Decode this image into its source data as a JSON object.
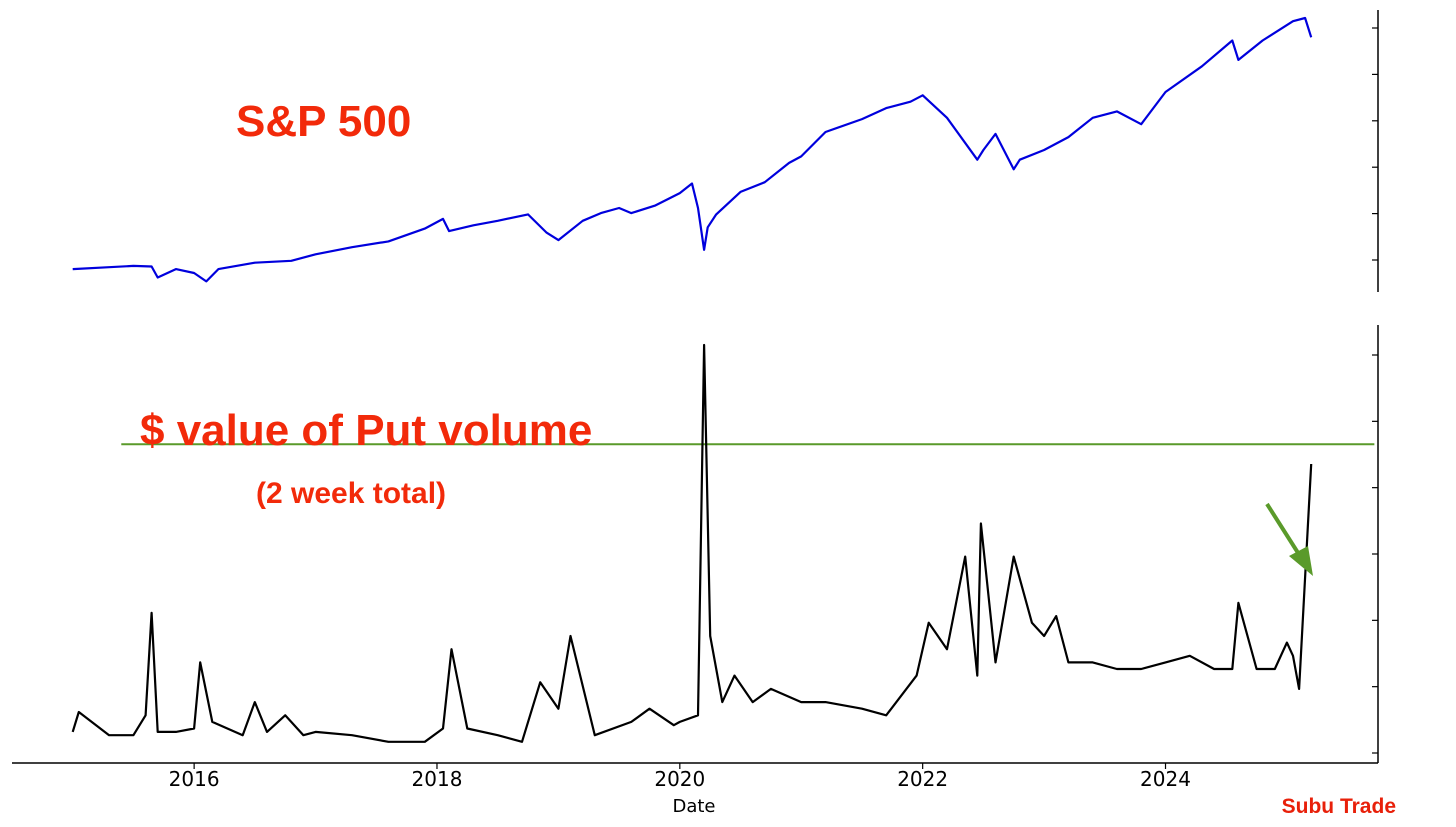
{
  "colors": {
    "sp500_line": "#0000dd",
    "put_line": "#000000",
    "threshold": "#5a9a2a",
    "annotation_text": "#f22a0a",
    "brand": "#e8200a"
  },
  "chart_data": [
    {
      "type": "line",
      "title": "S&P 500",
      "y_tick_labels_visible": false,
      "y_ticks_count": 6,
      "grid": false,
      "series": [
        {
          "x": [
            2015.0,
            2015.3,
            2015.5,
            2015.65,
            2015.7,
            2015.85,
            2016.0,
            2016.1,
            2016.2,
            2016.5,
            2016.8,
            2017.0,
            2017.3,
            2017.6,
            2017.9,
            2018.05,
            2018.1,
            2018.3,
            2018.5,
            2018.75,
            2018.9,
            2019.0,
            2019.2,
            2019.35,
            2019.5,
            2019.6,
            2019.8,
            2020.0,
            2020.1,
            2020.15,
            2020.2,
            2020.23,
            2020.3,
            2020.5,
            2020.7,
            2020.9,
            2021.0,
            2021.2,
            2021.5,
            2021.7,
            2021.9,
            2022.0,
            2022.2,
            2022.45,
            2022.5,
            2022.6,
            2022.75,
            2022.8,
            2023.0,
            2023.2,
            2023.4,
            2023.6,
            2023.8,
            2024.0,
            2024.3,
            2024.55,
            2024.6,
            2024.8,
            2025.05,
            2025.15,
            2025.2
          ],
          "y": [
            2050,
            2080,
            2100,
            2090,
            1920,
            2050,
            1990,
            1860,
            2050,
            2150,
            2180,
            2280,
            2390,
            2480,
            2680,
            2830,
            2640,
            2730,
            2800,
            2900,
            2620,
            2500,
            2800,
            2920,
            3000,
            2920,
            3040,
            3230,
            3380,
            3000,
            2350,
            2700,
            2900,
            3250,
            3400,
            3700,
            3800,
            4180,
            4380,
            4550,
            4650,
            4750,
            4400,
            3750,
            3900,
            4150,
            3600,
            3750,
            3900,
            4100,
            4400,
            4500,
            4300,
            4800,
            5200,
            5600,
            5300,
            5600,
            5900,
            5950,
            5650
          ]
        }
      ]
    },
    {
      "type": "line",
      "title": "$ value of Put volume",
      "subtitle": "(2 week total)",
      "xlabel": "Date",
      "x_ticks": [
        "2016",
        "2018",
        "2020",
        "2022",
        "2024"
      ],
      "xlim": [
        2014.5,
        2025.75
      ],
      "y_tick_labels_visible": false,
      "y_ticks_count": 7,
      "grid": false,
      "threshold_line": {
        "y": 0.47,
        "x_start": 2015.4,
        "x_end": 2025.72
      },
      "annotation": "green arrow pointing to latest value near threshold",
      "series": [
        {
          "x": [
            2015.0,
            2015.05,
            2015.3,
            2015.5,
            2015.6,
            2015.65,
            2015.7,
            2015.85,
            2016.0,
            2016.05,
            2016.15,
            2016.4,
            2016.5,
            2016.6,
            2016.75,
            2016.9,
            2017.0,
            2017.3,
            2017.6,
            2017.9,
            2018.05,
            2018.12,
            2018.25,
            2018.5,
            2018.7,
            2018.85,
            2019.0,
            2019.1,
            2019.3,
            2019.6,
            2019.75,
            2019.95,
            2020.0,
            2020.15,
            2020.2,
            2020.25,
            2020.35,
            2020.45,
            2020.6,
            2020.75,
            2021.0,
            2021.2,
            2021.5,
            2021.7,
            2021.95,
            2022.05,
            2022.2,
            2022.35,
            2022.45,
            2022.48,
            2022.6,
            2022.75,
            2022.9,
            2023.0,
            2023.1,
            2023.2,
            2023.4,
            2023.6,
            2023.8,
            2024.0,
            2024.2,
            2024.4,
            2024.55,
            2024.6,
            2024.75,
            2024.9,
            2025.0,
            2025.05,
            2025.1,
            2025.2
          ],
          "y": [
            0.035,
            0.065,
            0.03,
            0.03,
            0.06,
            0.215,
            0.035,
            0.035,
            0.04,
            0.14,
            0.05,
            0.03,
            0.08,
            0.035,
            0.06,
            0.03,
            0.035,
            0.03,
            0.02,
            0.02,
            0.04,
            0.16,
            0.04,
            0.03,
            0.02,
            0.11,
            0.07,
            0.18,
            0.03,
            0.05,
            0.07,
            0.045,
            0.05,
            0.06,
            0.62,
            0.18,
            0.08,
            0.12,
            0.08,
            0.1,
            0.08,
            0.08,
            0.07,
            0.06,
            0.12,
            0.2,
            0.16,
            0.3,
            0.12,
            0.35,
            0.14,
            0.3,
            0.2,
            0.18,
            0.21,
            0.14,
            0.14,
            0.13,
            0.13,
            0.14,
            0.15,
            0.13,
            0.13,
            0.23,
            0.13,
            0.13,
            0.17,
            0.15,
            0.1,
            0.44
          ]
        }
      ]
    }
  ],
  "brand": {
    "label": "Subu Trade"
  }
}
